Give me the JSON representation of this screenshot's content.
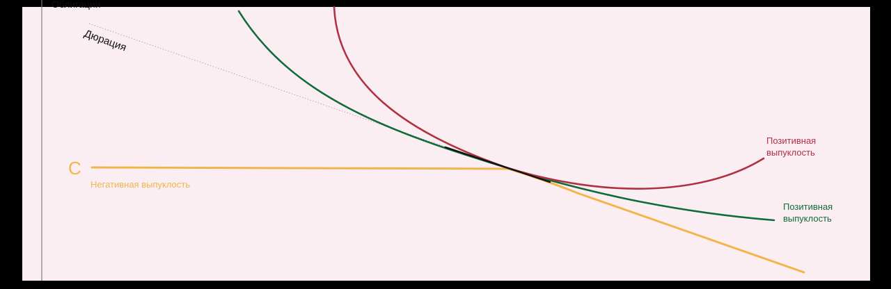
{
  "diagram": {
    "labels": {
      "top_cut": "Облигации",
      "duration": "Дюрация",
      "point_c": "C",
      "negative": "Негативная выпуклость",
      "positive_red_1": "Позитивная",
      "positive_red_2": "выпуклость",
      "positive_green_1": "Позитивная",
      "positive_green_2": "выпуклость"
    },
    "colors": {
      "background": "#fbeef3",
      "red": "#b0313f",
      "green": "#0f6b3a",
      "orange": "#f1b54a",
      "tangent": "#111111",
      "duration_line": "#b9a3aa",
      "axis": "#7d7d7d"
    }
  }
}
